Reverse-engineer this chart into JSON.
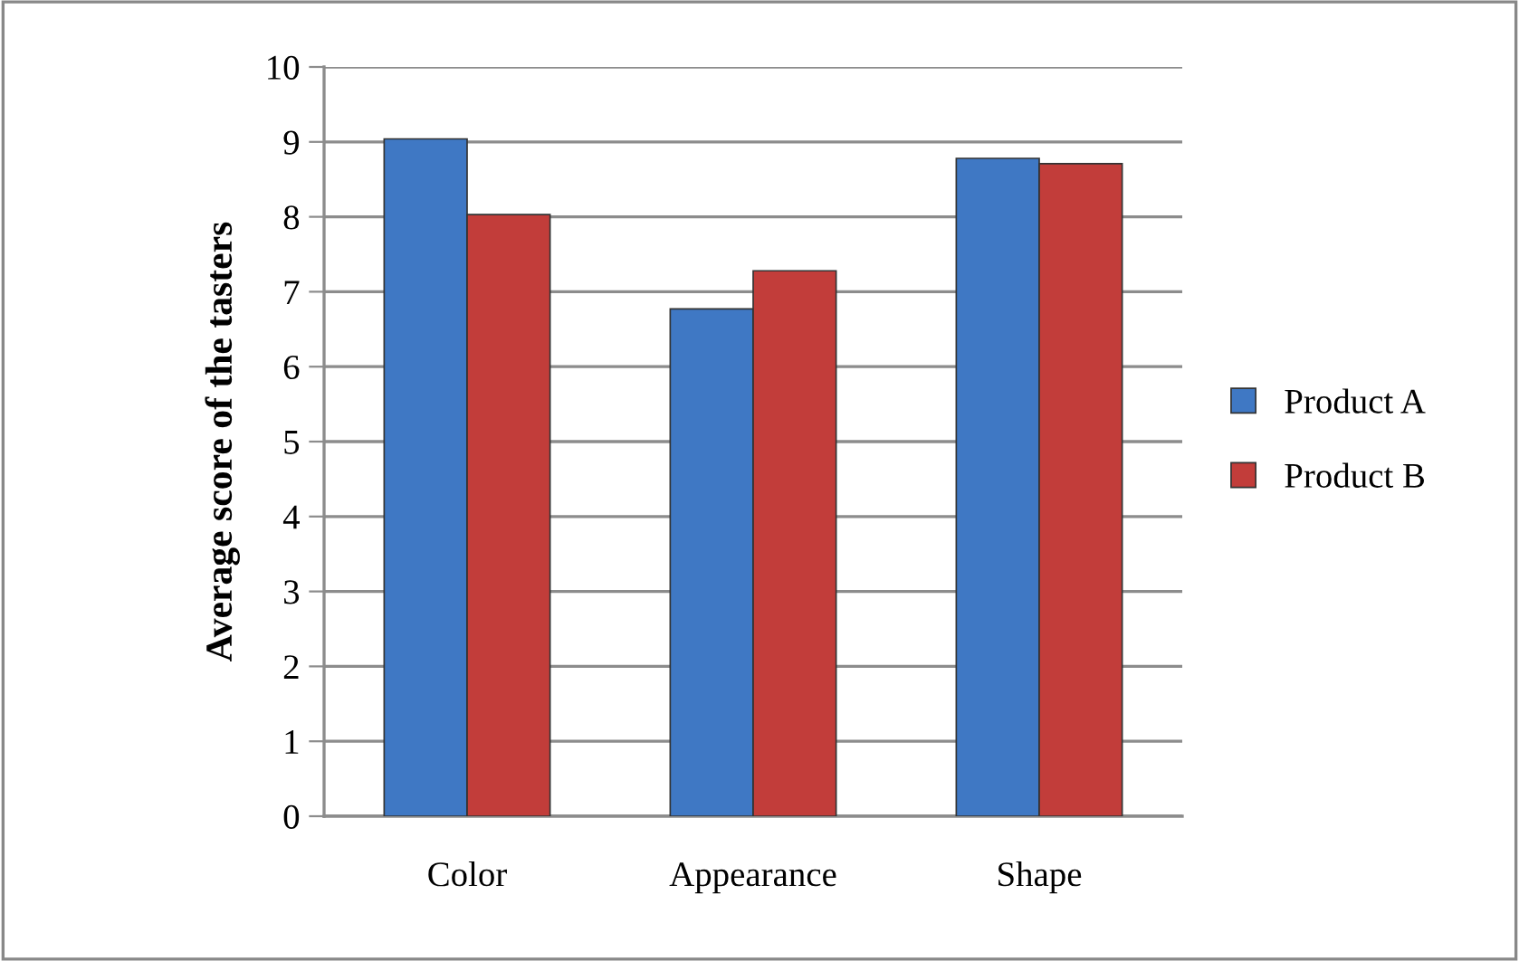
{
  "chart_data": {
    "type": "bar",
    "ylabel": "Average score of the tasters",
    "categories": [
      "Color",
      "Appearance",
      "Shape"
    ],
    "series": [
      {
        "name": "Product A",
        "color": "#3f78c4",
        "values": [
          9.04,
          6.77,
          8.78
        ]
      },
      {
        "name": "Product B",
        "color": "#c23d3a",
        "values": [
          8.03,
          7.28,
          8.71
        ]
      }
    ],
    "ylim": [
      0,
      10
    ],
    "yticks": [
      0,
      1,
      2,
      3,
      4,
      5,
      6,
      7,
      8,
      9,
      10
    ],
    "grid": "y",
    "legend": "right"
  }
}
